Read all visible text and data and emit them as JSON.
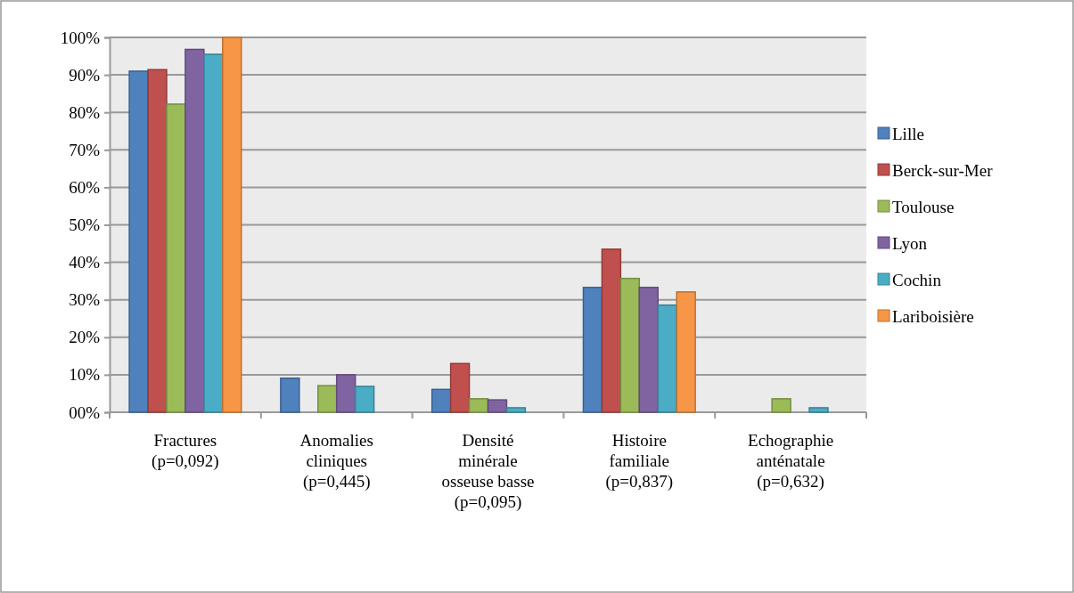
{
  "chart_data": {
    "type": "bar",
    "categories": [
      "Fractures\n(p=0,092)",
      "Anomalies\ncliniques\n(p=0,445)",
      "Densité\nminérale\nosseuse basse\n(p=0,095)",
      "Histoire\nfamiliale\n(p=0,837)",
      "Echographie\nanténatale\n(p=0,632)"
    ],
    "series": [
      {
        "name": "Lille",
        "color": "#4f81bd",
        "values": [
          91,
          9.1,
          6.1,
          33.3,
          0
        ]
      },
      {
        "name": "Berck-sur-Mer",
        "color": "#c0504d",
        "values": [
          91.4,
          0,
          13,
          43.5,
          0
        ]
      },
      {
        "name": "Toulouse",
        "color": "#9bbb59",
        "values": [
          82.2,
          7.1,
          3.6,
          35.7,
          3.6
        ]
      },
      {
        "name": "Lyon",
        "color": "#8064a2",
        "values": [
          96.8,
          10,
          3.3,
          33.3,
          0
        ]
      },
      {
        "name": "Cochin",
        "color": "#4bacc6",
        "values": [
          95.5,
          6.9,
          1.2,
          28.6,
          1.2
        ]
      },
      {
        "name": "Lariboisière",
        "color": "#f79646",
        "values": [
          100,
          0,
          0,
          32.1,
          0
        ]
      }
    ],
    "ylim": [
      0,
      100
    ],
    "yticks": [
      {
        "value": 0,
        "label": "00%"
      },
      {
        "value": 10,
        "label": "10%"
      },
      {
        "value": 20,
        "label": "20%"
      },
      {
        "value": 30,
        "label": "30%"
      },
      {
        "value": 40,
        "label": "40%"
      },
      {
        "value": 50,
        "label": "50%"
      },
      {
        "value": 60,
        "label": "60%"
      },
      {
        "value": 70,
        "label": "70%"
      },
      {
        "value": 80,
        "label": "80%"
      },
      {
        "value": 90,
        "label": "90%"
      },
      {
        "value": 100,
        "label": "100%"
      }
    ],
    "grid": "y",
    "legend": "right"
  }
}
